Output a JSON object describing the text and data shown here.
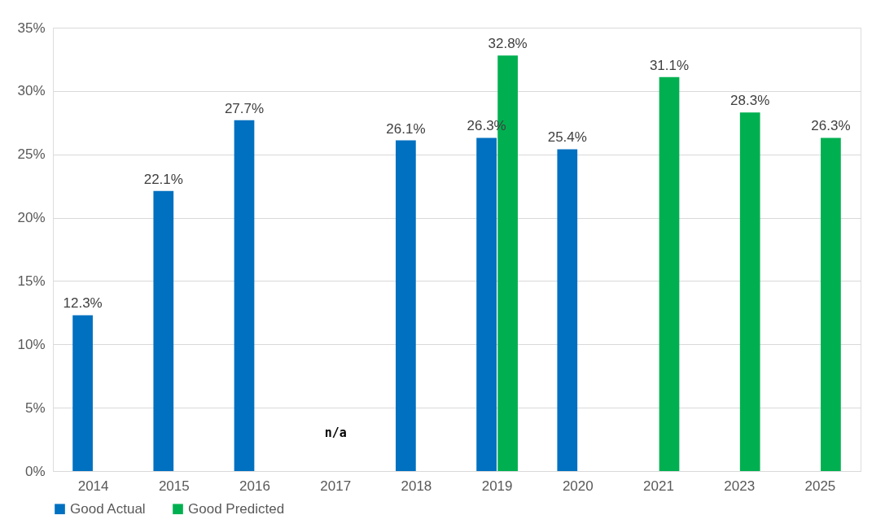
{
  "chart_data": {
    "type": "bar",
    "categories": [
      "2014",
      "2015",
      "2016",
      "2017",
      "2018",
      "2019",
      "2020",
      "2021",
      "2023",
      "2025"
    ],
    "series": [
      {
        "name": "Good Actual",
        "color": "#0070c0",
        "values": [
          12.3,
          22.1,
          27.7,
          null,
          26.1,
          26.3,
          25.4,
          null,
          null,
          null
        ],
        "value_labels": [
          "12.3%",
          "22.1%",
          "27.7%",
          null,
          "26.1%",
          "26.3%",
          "25.4%",
          null,
          null,
          null
        ]
      },
      {
        "name": "Good Predicted",
        "color": "#00b050",
        "values": [
          null,
          null,
          null,
          null,
          null,
          32.8,
          null,
          31.1,
          28.3,
          26.3
        ],
        "value_labels": [
          null,
          null,
          null,
          null,
          null,
          "32.8%",
          null,
          "31.1%",
          "28.3%",
          "26.3%"
        ]
      }
    ],
    "ylim": [
      0,
      35
    ],
    "yticks": [
      {
        "value": 0,
        "label": "0%"
      },
      {
        "value": 5,
        "label": "5%"
      },
      {
        "value": 10,
        "label": "10%"
      },
      {
        "value": 15,
        "label": "15%"
      },
      {
        "value": 20,
        "label": "20%"
      },
      {
        "value": 25,
        "label": "25%"
      },
      {
        "value": 30,
        "label": "30%"
      },
      {
        "value": 35,
        "label": "35%"
      }
    ],
    "annotations": [
      "n/a"
    ],
    "grid": "y",
    "legend": "bottom"
  }
}
